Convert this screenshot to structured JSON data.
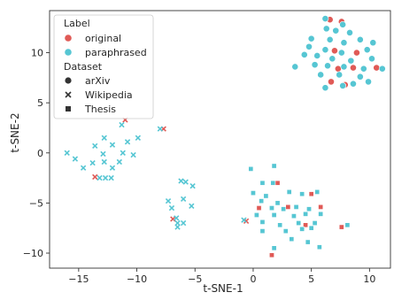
{
  "chart_data": {
    "type": "scatter",
    "xlabel": "t-SNE-1",
    "ylabel": "t-SNE-2",
    "xlim": [
      -17.5,
      11.8
    ],
    "ylim": [
      -11.5,
      14.2
    ],
    "x_ticks": [
      -15,
      -10,
      -5,
      0,
      5,
      10
    ],
    "y_ticks": [
      -10,
      -5,
      0,
      5,
      10
    ],
    "grid": false,
    "legend": {
      "placement": "top-left",
      "hue_title": "Label",
      "style_title": "Dataset",
      "hue_entries": [
        {
          "name": "original",
          "color": "#e05a56"
        },
        {
          "name": "paraphrased",
          "color": "#56c6d3"
        }
      ],
      "style_entries": [
        {
          "name": "arXiv",
          "marker": "circle"
        },
        {
          "name": "Wikipedia",
          "marker": "x"
        },
        {
          "name": "Thesis",
          "marker": "square"
        }
      ]
    },
    "series": [
      {
        "name": "original",
        "color": "#e05a56",
        "points": [
          {
            "x": 6.6,
            "y": 13.3,
            "dataset": "arXiv"
          },
          {
            "x": 7.6,
            "y": 13.1,
            "dataset": "arXiv"
          },
          {
            "x": 8.9,
            "y": 10.0,
            "dataset": "arXiv"
          },
          {
            "x": 7.3,
            "y": 8.4,
            "dataset": "arXiv"
          },
          {
            "x": 8.6,
            "y": 8.5,
            "dataset": "arXiv"
          },
          {
            "x": 10.6,
            "y": 8.5,
            "dataset": "arXiv"
          },
          {
            "x": 6.7,
            "y": 7.1,
            "dataset": "arXiv"
          },
          {
            "x": 7.9,
            "y": 6.8,
            "dataset": "arXiv"
          },
          {
            "x": 7.0,
            "y": 10.2,
            "dataset": "arXiv"
          },
          {
            "x": -11.0,
            "y": 3.3,
            "dataset": "Wikipedia"
          },
          {
            "x": -7.7,
            "y": 2.4,
            "dataset": "Wikipedia"
          },
          {
            "x": -13.6,
            "y": -2.4,
            "dataset": "Wikipedia"
          },
          {
            "x": -6.9,
            "y": -6.6,
            "dataset": "Wikipedia"
          },
          {
            "x": -0.6,
            "y": -6.8,
            "dataset": "Wikipedia"
          },
          {
            "x": 2.1,
            "y": -3.0,
            "dataset": "Thesis"
          },
          {
            "x": 0.5,
            "y": -5.5,
            "dataset": "Thesis"
          },
          {
            "x": 3.0,
            "y": -5.4,
            "dataset": "Thesis"
          },
          {
            "x": 5.0,
            "y": -4.1,
            "dataset": "Thesis"
          },
          {
            "x": 5.8,
            "y": -5.4,
            "dataset": "Thesis"
          },
          {
            "x": 1.6,
            "y": -10.2,
            "dataset": "Thesis"
          },
          {
            "x": 7.6,
            "y": -7.4,
            "dataset": "Thesis"
          },
          {
            "x": 4.5,
            "y": -7.2,
            "dataset": "Thesis"
          }
        ]
      },
      {
        "name": "paraphrased",
        "color": "#56c6d3",
        "points": [
          {
            "x": 6.2,
            "y": 13.4,
            "dataset": "arXiv"
          },
          {
            "x": 7.7,
            "y": 12.8,
            "dataset": "arXiv"
          },
          {
            "x": 6.3,
            "y": 12.4,
            "dataset": "arXiv"
          },
          {
            "x": 7.1,
            "y": 12.2,
            "dataset": "arXiv"
          },
          {
            "x": 5.0,
            "y": 11.4,
            "dataset": "arXiv"
          },
          {
            "x": 6.6,
            "y": 11.3,
            "dataset": "arXiv"
          },
          {
            "x": 7.8,
            "y": 11.0,
            "dataset": "arXiv"
          },
          {
            "x": 9.2,
            "y": 11.3,
            "dataset": "arXiv"
          },
          {
            "x": 10.3,
            "y": 11.0,
            "dataset": "arXiv"
          },
          {
            "x": 6.2,
            "y": 10.3,
            "dataset": "arXiv"
          },
          {
            "x": 7.6,
            "y": 10.0,
            "dataset": "arXiv"
          },
          {
            "x": 9.8,
            "y": 10.3,
            "dataset": "arXiv"
          },
          {
            "x": 4.4,
            "y": 9.8,
            "dataset": "arXiv"
          },
          {
            "x": 5.5,
            "y": 9.7,
            "dataset": "arXiv"
          },
          {
            "x": 6.8,
            "y": 9.4,
            "dataset": "arXiv"
          },
          {
            "x": 8.4,
            "y": 9.2,
            "dataset": "arXiv"
          },
          {
            "x": 10.2,
            "y": 9.4,
            "dataset": "arXiv"
          },
          {
            "x": 5.3,
            "y": 8.8,
            "dataset": "arXiv"
          },
          {
            "x": 6.4,
            "y": 8.7,
            "dataset": "arXiv"
          },
          {
            "x": 7.8,
            "y": 8.6,
            "dataset": "arXiv"
          },
          {
            "x": 9.5,
            "y": 8.4,
            "dataset": "arXiv"
          },
          {
            "x": 11.1,
            "y": 8.4,
            "dataset": "arXiv"
          },
          {
            "x": 3.6,
            "y": 8.6,
            "dataset": "arXiv"
          },
          {
            "x": 5.8,
            "y": 7.8,
            "dataset": "arXiv"
          },
          {
            "x": 7.4,
            "y": 7.8,
            "dataset": "arXiv"
          },
          {
            "x": 9.2,
            "y": 7.6,
            "dataset": "arXiv"
          },
          {
            "x": 6.2,
            "y": 6.5,
            "dataset": "arXiv"
          },
          {
            "x": 7.7,
            "y": 6.7,
            "dataset": "arXiv"
          },
          {
            "x": 8.6,
            "y": 6.9,
            "dataset": "arXiv"
          },
          {
            "x": 9.9,
            "y": 7.1,
            "dataset": "arXiv"
          },
          {
            "x": 4.8,
            "y": 10.6,
            "dataset": "arXiv"
          },
          {
            "x": 8.3,
            "y": 12.0,
            "dataset": "arXiv"
          },
          {
            "x": -11.3,
            "y": 2.8,
            "dataset": "Wikipedia"
          },
          {
            "x": -8.0,
            "y": 2.4,
            "dataset": "Wikipedia"
          },
          {
            "x": -12.8,
            "y": 1.5,
            "dataset": "Wikipedia"
          },
          {
            "x": -9.9,
            "y": 1.5,
            "dataset": "Wikipedia"
          },
          {
            "x": -10.8,
            "y": 1.1,
            "dataset": "Wikipedia"
          },
          {
            "x": -13.6,
            "y": 0.7,
            "dataset": "Wikipedia"
          },
          {
            "x": -12.1,
            "y": 0.8,
            "dataset": "Wikipedia"
          },
          {
            "x": -16.0,
            "y": 0.0,
            "dataset": "Wikipedia"
          },
          {
            "x": -12.9,
            "y": -0.1,
            "dataset": "Wikipedia"
          },
          {
            "x": -11.2,
            "y": 0.0,
            "dataset": "Wikipedia"
          },
          {
            "x": -10.3,
            "y": -0.2,
            "dataset": "Wikipedia"
          },
          {
            "x": -15.3,
            "y": -0.6,
            "dataset": "Wikipedia"
          },
          {
            "x": -12.8,
            "y": -0.9,
            "dataset": "Wikipedia"
          },
          {
            "x": -11.5,
            "y": -0.9,
            "dataset": "Wikipedia"
          },
          {
            "x": -14.6,
            "y": -1.5,
            "dataset": "Wikipedia"
          },
          {
            "x": -13.8,
            "y": -1.0,
            "dataset": "Wikipedia"
          },
          {
            "x": -12.1,
            "y": -1.5,
            "dataset": "Wikipedia"
          },
          {
            "x": -13.2,
            "y": -2.5,
            "dataset": "Wikipedia"
          },
          {
            "x": -12.7,
            "y": -2.5,
            "dataset": "Wikipedia"
          },
          {
            "x": -12.2,
            "y": -2.5,
            "dataset": "Wikipedia"
          },
          {
            "x": -6.2,
            "y": -2.8,
            "dataset": "Wikipedia"
          },
          {
            "x": -5.8,
            "y": -2.9,
            "dataset": "Wikipedia"
          },
          {
            "x": -5.2,
            "y": -3.3,
            "dataset": "Wikipedia"
          },
          {
            "x": -6.0,
            "y": -4.6,
            "dataset": "Wikipedia"
          },
          {
            "x": -7.3,
            "y": -4.8,
            "dataset": "Wikipedia"
          },
          {
            "x": -7.0,
            "y": -5.5,
            "dataset": "Wikipedia"
          },
          {
            "x": -5.3,
            "y": -5.3,
            "dataset": "Wikipedia"
          },
          {
            "x": -6.6,
            "y": -6.5,
            "dataset": "Wikipedia"
          },
          {
            "x": -6.5,
            "y": -7.0,
            "dataset": "Wikipedia"
          },
          {
            "x": -6.0,
            "y": -7.0,
            "dataset": "Wikipedia"
          },
          {
            "x": -6.5,
            "y": -7.4,
            "dataset": "Wikipedia"
          },
          {
            "x": -0.8,
            "y": -6.7,
            "dataset": "Wikipedia"
          },
          {
            "x": -0.2,
            "y": -1.6,
            "dataset": "Thesis"
          },
          {
            "x": 1.8,
            "y": -1.3,
            "dataset": "Thesis"
          },
          {
            "x": 0.8,
            "y": -3.0,
            "dataset": "Thesis"
          },
          {
            "x": 1.7,
            "y": -3.0,
            "dataset": "Thesis"
          },
          {
            "x": 0.0,
            "y": -4.0,
            "dataset": "Thesis"
          },
          {
            "x": 1.1,
            "y": -4.3,
            "dataset": "Thesis"
          },
          {
            "x": 3.1,
            "y": -3.9,
            "dataset": "Thesis"
          },
          {
            "x": 4.2,
            "y": -4.1,
            "dataset": "Thesis"
          },
          {
            "x": 5.5,
            "y": -3.9,
            "dataset": "Thesis"
          },
          {
            "x": 0.7,
            "y": -4.8,
            "dataset": "Thesis"
          },
          {
            "x": 2.1,
            "y": -5.0,
            "dataset": "Thesis"
          },
          {
            "x": 1.6,
            "y": -5.5,
            "dataset": "Thesis"
          },
          {
            "x": 2.6,
            "y": -5.6,
            "dataset": "Thesis"
          },
          {
            "x": 3.7,
            "y": -5.4,
            "dataset": "Thesis"
          },
          {
            "x": 4.8,
            "y": -5.6,
            "dataset": "Thesis"
          },
          {
            "x": 0.3,
            "y": -6.2,
            "dataset": "Thesis"
          },
          {
            "x": 1.8,
            "y": -6.2,
            "dataset": "Thesis"
          },
          {
            "x": 3.5,
            "y": -6.3,
            "dataset": "Thesis"
          },
          {
            "x": 4.5,
            "y": -6.1,
            "dataset": "Thesis"
          },
          {
            "x": 5.8,
            "y": -6.1,
            "dataset": "Thesis"
          },
          {
            "x": 0.8,
            "y": -6.9,
            "dataset": "Thesis"
          },
          {
            "x": 2.3,
            "y": -7.2,
            "dataset": "Thesis"
          },
          {
            "x": 3.9,
            "y": -7.0,
            "dataset": "Thesis"
          },
          {
            "x": 5.3,
            "y": -7.0,
            "dataset": "Thesis"
          },
          {
            "x": 0.8,
            "y": -7.8,
            "dataset": "Thesis"
          },
          {
            "x": 2.8,
            "y": -7.8,
            "dataset": "Thesis"
          },
          {
            "x": 4.2,
            "y": -7.6,
            "dataset": "Thesis"
          },
          {
            "x": 5.0,
            "y": -7.5,
            "dataset": "Thesis"
          },
          {
            "x": 3.3,
            "y": -8.6,
            "dataset": "Thesis"
          },
          {
            "x": 4.7,
            "y": -8.9,
            "dataset": "Thesis"
          },
          {
            "x": 1.8,
            "y": -9.5,
            "dataset": "Thesis"
          },
          {
            "x": 5.7,
            "y": -9.4,
            "dataset": "Thesis"
          },
          {
            "x": 8.1,
            "y": -7.2,
            "dataset": "Thesis"
          }
        ]
      }
    ]
  }
}
